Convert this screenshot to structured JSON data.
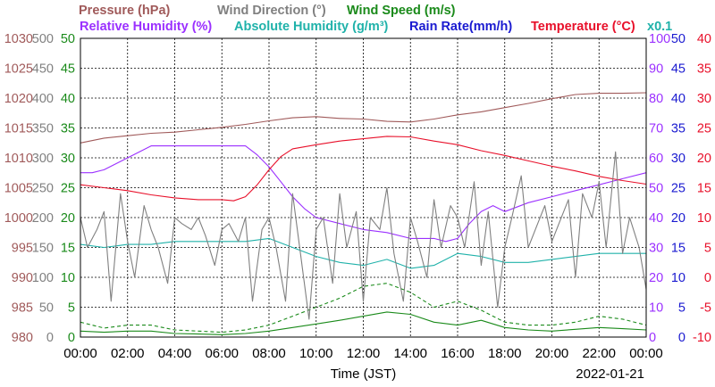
{
  "chart_data": {
    "type": "line",
    "date": "2022-01-21",
    "xlabel": "Time (JST)",
    "x_ticks": [
      "00:00",
      "02:00",
      "04:00",
      "06:00",
      "08:00",
      "10:00",
      "12:00",
      "14:00",
      "16:00",
      "18:00",
      "20:00",
      "22:00",
      "00:00"
    ],
    "grid": true,
    "titles": [
      {
        "text": "Pressure (hPa)",
        "color": "#a05a5a"
      },
      {
        "text": "Wind Direction (°)",
        "color": "#808080"
      },
      {
        "text": "Wind Speed (m/s)",
        "color": "#1a8a1a"
      },
      {
        "text": "Relative Humidity (%)",
        "color": "#9b30ff"
      },
      {
        "text": "Absolute Humidity (g/m³)",
        "color": "#20b2aa"
      },
      {
        "text": "Rain Rate(mm/h)",
        "color": "#1a1ad0"
      },
      {
        "text": "Temperature (°C)",
        "color": "#e8102a"
      },
      {
        "text": "x0.1",
        "color": "#20b2aa"
      }
    ],
    "axes": [
      {
        "id": "pressure",
        "color": "#a05a5a",
        "side": "left",
        "range": [
          980,
          1030
        ],
        "ticks": [
          "1030",
          "1025",
          "1020",
          "1015",
          "1010",
          "1005",
          "1000",
          "995",
          "990",
          "985",
          "980"
        ]
      },
      {
        "id": "wind_direction",
        "color": "#808080",
        "side": "left",
        "range": [
          0,
          500
        ],
        "ticks": [
          "500",
          "450",
          "400",
          "350",
          "300",
          "250",
          "200",
          "150",
          "100",
          "50",
          "0"
        ]
      },
      {
        "id": "wind_speed",
        "color": "#1a8a1a",
        "side": "left",
        "range": [
          0,
          50
        ],
        "ticks": [
          "50",
          "45",
          "40",
          "35",
          "30",
          "25",
          "20",
          "15",
          "10",
          "5",
          "0"
        ]
      },
      {
        "id": "humidity",
        "color": "#9b30ff",
        "side": "right",
        "range": [
          0,
          100
        ],
        "ticks": [
          "100",
          "90",
          "80",
          "70",
          "60",
          "50",
          "40",
          "30",
          "20",
          "10",
          "0"
        ]
      },
      {
        "id": "rain_rate",
        "color": "#1a1ad0",
        "side": "right",
        "range": [
          0,
          50
        ],
        "ticks": [
          "50",
          "45",
          "40",
          "35",
          "30",
          "25",
          "20",
          "15",
          "10",
          "5",
          "0"
        ]
      },
      {
        "id": "temperature",
        "color": "#e8102a",
        "side": "right",
        "range": [
          -10,
          40
        ],
        "ticks": [
          "40",
          "35",
          "30",
          "25",
          "20",
          "15",
          "10",
          "5",
          "0",
          "-5",
          "-10"
        ]
      }
    ],
    "series": [
      {
        "name": "Pressure (hPa)",
        "axis": "pressure",
        "color": "#a05a5a",
        "style": "solid",
        "x_hours": [
          0,
          1,
          2,
          3,
          4,
          5,
          6,
          7,
          8,
          9,
          10,
          11,
          12,
          13,
          14,
          15,
          16,
          17,
          18,
          19,
          20,
          21,
          22,
          23,
          24
        ],
        "values": [
          1012.5,
          1013.3,
          1013.7,
          1014.1,
          1014.3,
          1014.7,
          1015.1,
          1015.6,
          1016.2,
          1016.7,
          1016.9,
          1016.6,
          1016.5,
          1016.1,
          1016.0,
          1016.5,
          1017.2,
          1017.7,
          1018.4,
          1019.1,
          1019.9,
          1020.6,
          1020.8,
          1020.8,
          1020.9
        ]
      },
      {
        "name": "Relative Humidity (%)",
        "axis": "humidity",
        "color": "#9b30ff",
        "style": "solid",
        "x_hours": [
          0,
          0.5,
          1,
          2,
          3,
          4,
          5,
          6,
          7,
          7.5,
          8,
          8.5,
          9,
          9.5,
          10,
          11,
          12,
          13,
          14,
          15,
          15.5,
          16,
          16.5,
          17,
          17.5,
          18,
          19,
          20,
          21,
          22,
          23,
          24
        ],
        "values": [
          55,
          55,
          56,
          60,
          64,
          64,
          64,
          64,
          64,
          61,
          57,
          52,
          47,
          43,
          40,
          38,
          36,
          35,
          33,
          33,
          32,
          33,
          38,
          42,
          44,
          42,
          45,
          47,
          49,
          51,
          53,
          55
        ]
      },
      {
        "name": "Absolute Humidity (g/m³)",
        "axis": "humidity",
        "color": "#20b2aa",
        "style": "solid",
        "x_hours": [
          0,
          1,
          2,
          3,
          4,
          5,
          6,
          7,
          8,
          9,
          10,
          11,
          12,
          13,
          14,
          15,
          16,
          17,
          18,
          19,
          20,
          21,
          22,
          23,
          24
        ],
        "values": [
          31,
          30,
          31,
          31,
          32,
          32,
          32,
          32,
          33,
          30,
          27,
          25,
          24,
          26,
          23,
          24,
          28,
          27,
          25,
          25,
          26,
          27,
          28,
          28,
          28
        ]
      },
      {
        "name": "Temperature (°C)",
        "axis": "temperature",
        "color": "#e8102a",
        "style": "solid",
        "x_hours": [
          0,
          1,
          2,
          3,
          4,
          5,
          6,
          6.5,
          7,
          7.5,
          8,
          8.5,
          9,
          10,
          11,
          12,
          13,
          14,
          15,
          16,
          17,
          18,
          19,
          20,
          21,
          22,
          23,
          24
        ],
        "values": [
          15.5,
          15.0,
          14.5,
          13.8,
          13.3,
          13.0,
          13.0,
          12.8,
          13.5,
          15.5,
          18.0,
          20.2,
          21.5,
          22.2,
          22.8,
          23.2,
          23.6,
          23.5,
          22.8,
          22.2,
          21.2,
          20.4,
          19.5,
          18.6,
          17.8,
          16.9,
          16.2,
          15.6
        ]
      },
      {
        "name": "Wind Speed (m/s)",
        "axis": "wind_speed",
        "color": "#1a8a1a",
        "style": "solid",
        "x_hours": [
          0,
          1,
          2,
          3,
          4,
          5,
          6,
          7,
          8,
          9,
          10,
          11,
          12,
          13,
          14,
          15,
          16,
          17,
          18,
          19,
          20,
          21,
          22,
          23,
          24
        ],
        "values": [
          1.0,
          0.8,
          1.0,
          1.0,
          0.6,
          0.5,
          0.4,
          0.6,
          1.0,
          1.6,
          2.2,
          2.8,
          3.5,
          4.2,
          3.8,
          2.5,
          2.0,
          2.8,
          1.6,
          1.2,
          1.0,
          1.3,
          1.6,
          1.4,
          1.2
        ]
      },
      {
        "name": "Wind Speed gust (m/s)",
        "axis": "wind_speed",
        "color": "#1a8a1a",
        "style": "dashed",
        "x_hours": [
          0,
          1,
          2,
          3,
          4,
          5,
          6,
          7,
          8,
          9,
          10,
          11,
          12,
          13,
          14,
          15,
          16,
          17,
          18,
          19,
          20,
          21,
          22,
          23,
          24
        ],
        "values": [
          2.5,
          1.5,
          2.0,
          2.0,
          1.2,
          1.0,
          0.8,
          1.2,
          2.0,
          3.5,
          5.0,
          6.5,
          8.5,
          9.0,
          7.5,
          5.0,
          6.0,
          4.5,
          2.5,
          2.0,
          2.0,
          2.5,
          3.5,
          3.0,
          2.0
        ]
      },
      {
        "name": "Wind Direction (°)",
        "axis": "wind_direction",
        "color": "#808080",
        "style": "solid",
        "x_hours": [
          0,
          0.3,
          0.7,
          1,
          1.3,
          1.7,
          2,
          2.3,
          2.7,
          3,
          3.3,
          3.7,
          4,
          4.3,
          4.7,
          5,
          5.3,
          5.7,
          6,
          6.3,
          6.7,
          7,
          7.3,
          7.7,
          8,
          8.3,
          8.7,
          9,
          9.3,
          9.7,
          10,
          10.3,
          10.7,
          11,
          11.3,
          11.7,
          12,
          12.3,
          12.7,
          13,
          13.3,
          13.7,
          14,
          14.3,
          14.7,
          15,
          15.3,
          15.7,
          16,
          16.3,
          16.7,
          17,
          17.3,
          17.7,
          18,
          18.3,
          18.7,
          19,
          19.3,
          19.7,
          20,
          20.3,
          20.7,
          21,
          21.3,
          21.7,
          22,
          22.3,
          22.7,
          23,
          23.3,
          23.7,
          24
        ],
        "values": [
          200,
          150,
          180,
          210,
          60,
          240,
          160,
          100,
          220,
          180,
          150,
          90,
          200,
          190,
          180,
          200,
          170,
          120,
          180,
          190,
          160,
          200,
          60,
          180,
          200,
          150,
          60,
          240,
          150,
          30,
          180,
          200,
          90,
          240,
          150,
          210,
          60,
          200,
          180,
          250,
          140,
          60,
          200,
          160,
          100,
          230,
          150,
          220,
          200,
          150,
          260,
          120,
          210,
          50,
          150,
          200,
          270,
          150,
          180,
          220,
          160,
          190,
          230,
          100,
          240,
          200,
          260,
          150,
          310,
          140,
          200,
          150,
          80
        ]
      },
      {
        "name": "Rain Rate(mm/h)",
        "axis": "rain_rate",
        "color": "#1a1ad0",
        "style": "solid",
        "x_hours": [
          0,
          24
        ],
        "values": [
          0,
          0
        ]
      }
    ]
  }
}
